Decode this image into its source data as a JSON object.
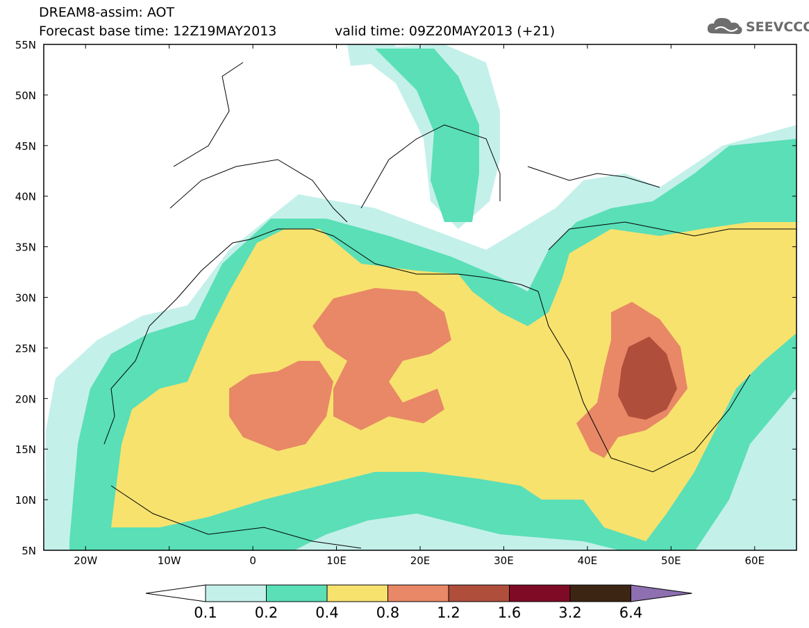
{
  "header": {
    "line1": "DREAM8-assim: AOT",
    "line2": "Forecast base time: 12Z19MAY2013",
    "line3": "valid time: 09Z20MAY2013 (+21)"
  },
  "logo": {
    "text": "SEEVCCC",
    "icon": "cloud-icon"
  },
  "map": {
    "lat_range": [
      5,
      55
    ],
    "lon_range": [
      -25,
      65
    ],
    "lat_labels": [
      "55N",
      "50N",
      "45N",
      "40N",
      "35N",
      "30N",
      "25N",
      "20N",
      "15N",
      "10N",
      "5N"
    ],
    "lon_labels": [
      "20W",
      "10W",
      "0",
      "10E",
      "20E",
      "30E",
      "40E",
      "50E",
      "60E"
    ]
  },
  "colorbar": {
    "labels": [
      "0.1",
      "0.2",
      "0.4",
      "0.8",
      "1.2",
      "1.6",
      "3.2",
      "6.4"
    ],
    "colors": [
      "#c4f0ea",
      "#5adfb7",
      "#f7e26e",
      "#e88866",
      "#b04e3c",
      "#7e0a25",
      "#3d2514",
      "#8e6fb0"
    ]
  }
}
